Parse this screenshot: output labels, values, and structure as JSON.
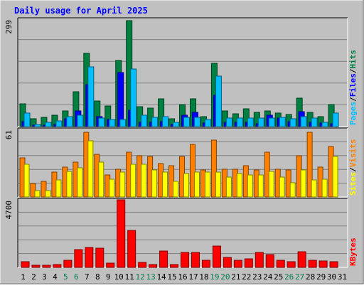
{
  "chart_data": {
    "title": "Daily usage for April 2025",
    "type": "bar",
    "categories": [
      "1",
      "2",
      "3",
      "4",
      "5",
      "6",
      "7",
      "8",
      "9",
      "10",
      "11",
      "12",
      "13",
      "14",
      "15",
      "16",
      "17",
      "18",
      "19",
      "20",
      "21",
      "22",
      "23",
      "24",
      "25",
      "26",
      "27",
      "28",
      "29",
      "30",
      "31"
    ],
    "weekend_days": [
      5,
      6,
      12,
      13,
      19,
      20,
      26,
      27
    ],
    "panels": [
      {
        "name": "hits-files-pages",
        "max_label": "299",
        "ylim": [
          0,
          299
        ],
        "series": [
          {
            "name": "Hits",
            "color": "#008040",
            "values": [
              62,
              22,
              26,
              32,
              44,
              96,
              202,
              70,
              58,
              182,
              293,
              56,
              52,
              76,
              22,
              60,
              76,
              28,
              175,
              44,
              36,
              50,
              40,
              44,
              38,
              34,
              78,
              40,
              28,
              60,
              0
            ]
          },
          {
            "name": "Files",
            "color": "#0000ff",
            "values": [
              14,
              4,
              4,
              6,
              22,
              44,
              116,
              28,
              20,
              150,
              46,
              12,
              12,
              14,
              6,
              32,
              40,
              10,
              86,
              12,
              12,
              12,
              8,
              32,
              24,
              14,
              42,
              12,
              10,
              8,
              0
            ]
          },
          {
            "name": "Pages",
            "color": "#00bfff",
            "values": [
              38,
              6,
              12,
              16,
              28,
              32,
              166,
              24,
              20,
              20,
              160,
              32,
              26,
              28,
              12,
              26,
              26,
              20,
              140,
              24,
              24,
              24,
              24,
              24,
              26,
              22,
              28,
              24,
              12,
              38,
              0
            ]
          }
        ],
        "legend": [
          "Pages",
          "Files",
          "Hits"
        ]
      },
      {
        "name": "visits-sites",
        "max_label": "61",
        "ylim": [
          0,
          61
        ],
        "series": [
          {
            "name": "Visits",
            "color": "#ff8000",
            "values": [
              35,
              12,
              14,
              22,
              27,
              31,
              58,
              38,
              20,
              25,
              40,
              37,
              36,
              30,
              28,
              36,
              47,
              24,
              51,
              25,
              25,
              28,
              24,
              40,
              25,
              24,
              37,
              58,
              27,
              45,
              0
            ]
          },
          {
            "name": "Sites",
            "color": "#ffff00",
            "values": [
              29,
              6,
              6,
              15,
              23,
              26,
              50,
              31,
              16,
              22,
              29,
              29,
              24,
              22,
              14,
              21,
              22,
              22,
              22,
              18,
              21,
              20,
              20,
              23,
              18,
              13,
              24,
              15,
              16,
              36,
              0
            ]
          }
        ],
        "legend": [
          "Sites",
          "Visits"
        ]
      },
      {
        "name": "kbytes",
        "max_label": "4700",
        "ylim": [
          0,
          4700
        ],
        "series": [
          {
            "name": "KBytes",
            "color": "#ff0000",
            "values": [
              415,
              133,
              150,
              188,
              498,
              1214,
              1367,
              1327,
              315,
              4640,
              2564,
              366,
              209,
              1114,
              213,
              1006,
              1032,
              495,
              1451,
              709,
              471,
              570,
              1044,
              898,
              493,
              404,
              1066,
              476,
              465,
              375,
              0
            ]
          }
        ],
        "legend": [
          "KBytes"
        ]
      }
    ]
  }
}
